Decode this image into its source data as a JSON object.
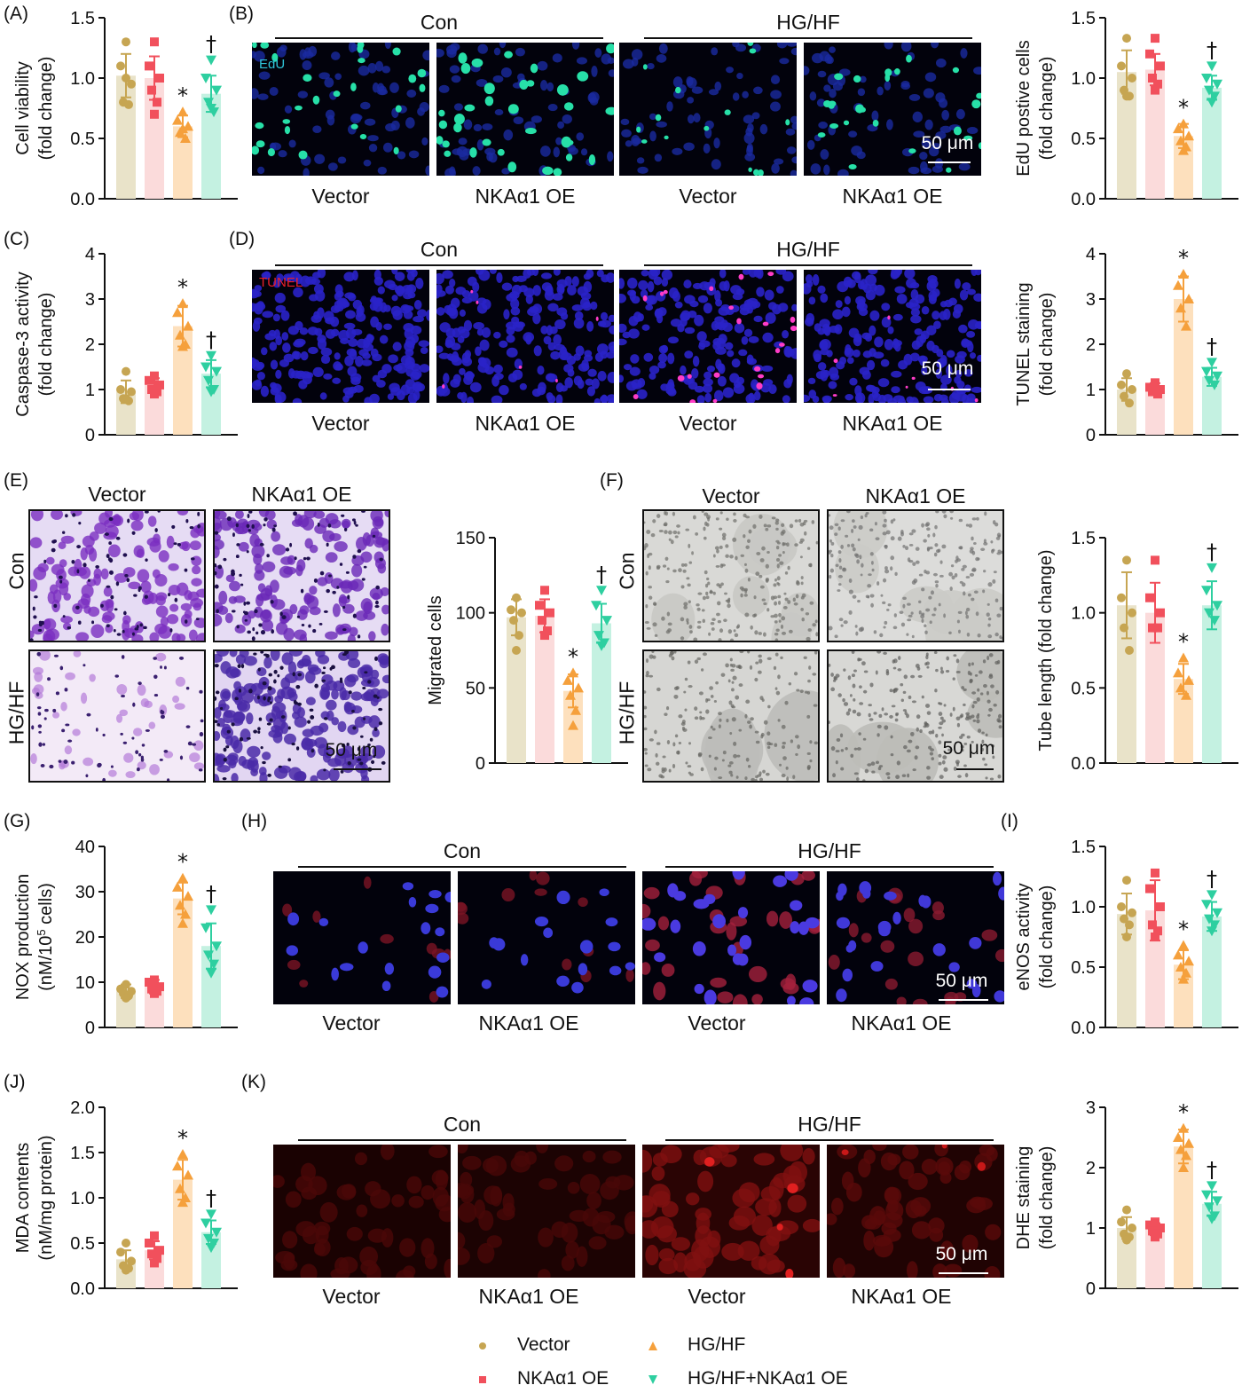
{
  "colors": {
    "vector": "#c6a552",
    "vector_bar": "#e9e3c9",
    "oe": "#f1505c",
    "oe_bar": "#fbdbdb",
    "hg": "#f5a03c",
    "hg_bar": "#fde0bd",
    "hgoe": "#2ecfa0",
    "hgoe_bar": "#c4f1e1"
  },
  "common": {
    "con": "Con",
    "hghf": "HG/HF",
    "vector": "Vector",
    "oe": "NKAα1 OE",
    "scale": "50 μm",
    "edu": "EdU",
    "tunel": "TUNEL"
  },
  "panels": {
    "A": "(A)",
    "B": "(B)",
    "C": "(C)",
    "D": "(D)",
    "E": "(E)",
    "F": "(F)",
    "G": "(G)",
    "H": "(H)",
    "I": "(I)",
    "J": "(J)",
    "K": "(K)"
  },
  "legend": {
    "vector": "Vector",
    "oe": "NKAα1 OE",
    "hg": "HG/HF",
    "hgoe": "HG/HF+NKAα1 OE"
  },
  "chart_data": [
    {
      "id": "A",
      "type": "bar",
      "ylabel": [
        "Cell viability",
        "(fold change)"
      ],
      "ylim": [
        0,
        1.5
      ],
      "ticks": [
        "0.0",
        "0.5",
        "1.0",
        "1.5"
      ],
      "series": [
        {
          "name": "Vector",
          "value": 1.02,
          "sd": 0.18,
          "points": [
            1.3,
            1.1,
            0.95,
            0.8,
            0.78,
            1.0
          ]
        },
        {
          "name": "NKAα1 OE",
          "value": 1.0,
          "sd": 0.18,
          "points": [
            1.3,
            1.1,
            1.0,
            0.9,
            0.8,
            0.7
          ]
        },
        {
          "name": "HG/HF",
          "value": 0.6,
          "sd": 0.09,
          "points": [
            0.72,
            0.65,
            0.6,
            0.55,
            0.5,
            0.58
          ]
        },
        {
          "name": "HG/HF+NKAα1 OE",
          "value": 0.87,
          "sd": 0.15,
          "points": [
            1.15,
            1.0,
            0.9,
            0.8,
            0.72,
            0.75
          ]
        }
      ],
      "marks": [
        "",
        "",
        "*",
        "†"
      ]
    },
    {
      "id": "B",
      "type": "bar",
      "ylabel": [
        "EdU postive cells",
        "(fold change)"
      ],
      "ylim": [
        0,
        1.5
      ],
      "ticks": [
        "0.0",
        "0.5",
        "1.0",
        "1.5"
      ],
      "series": [
        {
          "name": "Vector",
          "value": 1.05,
          "sd": 0.18,
          "points": [
            1.33,
            1.1,
            1.0,
            0.9,
            0.85,
            0.85
          ]
        },
        {
          "name": "NKAα1 OE",
          "value": 1.07,
          "sd": 0.13,
          "points": [
            1.33,
            1.2,
            1.1,
            1.0,
            0.95,
            0.9
          ]
        },
        {
          "name": "HG/HF",
          "value": 0.52,
          "sd": 0.1,
          "points": [
            0.62,
            0.58,
            0.52,
            0.48,
            0.43,
            0.4
          ]
        },
        {
          "name": "HG/HF+NKAα1 OE",
          "value": 0.92,
          "sd": 0.1,
          "points": [
            1.1,
            1.0,
            0.95,
            0.9,
            0.85,
            0.8
          ]
        }
      ],
      "marks": [
        "",
        "",
        "*",
        "†"
      ]
    },
    {
      "id": "C",
      "type": "bar",
      "ylabel": [
        "Caspase-3  activity",
        "(fold change)"
      ],
      "ylim": [
        0,
        4
      ],
      "ticks": [
        "0",
        "1",
        "2",
        "3",
        "4"
      ],
      "series": [
        {
          "name": "Vector",
          "value": 0.95,
          "sd": 0.25,
          "points": [
            1.4,
            1.0,
            0.95,
            0.8,
            0.75,
            0.8
          ]
        },
        {
          "name": "NKAα1 OE",
          "value": 1.1,
          "sd": 0.15,
          "points": [
            1.3,
            1.2,
            1.1,
            1.0,
            0.95,
            0.9
          ]
        },
        {
          "name": "HG/HF",
          "value": 2.4,
          "sd": 0.45,
          "points": [
            2.9,
            2.7,
            2.4,
            2.2,
            2.0,
            1.95
          ]
        },
        {
          "name": "HG/HF+NKAα1 OE",
          "value": 1.35,
          "sd": 0.3,
          "points": [
            1.75,
            1.5,
            1.4,
            1.2,
            1.0,
            0.95
          ]
        }
      ],
      "marks": [
        "",
        "",
        "*",
        "†"
      ]
    },
    {
      "id": "D",
      "type": "bar",
      "ylabel": [
        "TUNEL staining",
        "(fold change)"
      ],
      "ylim": [
        0,
        4
      ],
      "ticks": [
        "0",
        "1",
        "2",
        "3",
        "4"
      ],
      "series": [
        {
          "name": "Vector",
          "value": 1.0,
          "sd": 0.25,
          "points": [
            1.35,
            1.1,
            1.0,
            0.85,
            0.7
          ]
        },
        {
          "name": "NKAα1 OE",
          "value": 1.02,
          "sd": 0.12,
          "points": [
            1.15,
            1.05,
            1.0,
            0.95,
            0.9
          ]
        },
        {
          "name": "HG/HF",
          "value": 3.0,
          "sd": 0.5,
          "points": [
            3.55,
            3.3,
            3.0,
            2.8,
            2.4
          ]
        },
        {
          "name": "HG/HF+NKAα1 OE",
          "value": 1.28,
          "sd": 0.2,
          "points": [
            1.6,
            1.4,
            1.3,
            1.2,
            1.1
          ]
        }
      ],
      "marks": [
        "",
        "",
        "*",
        "†"
      ]
    },
    {
      "id": "E",
      "type": "bar",
      "ylabel": [
        "Migrated cells"
      ],
      "ylim": [
        0,
        150
      ],
      "ticks": [
        "0",
        "50",
        "100",
        "150"
      ],
      "series": [
        {
          "name": "Vector",
          "value": 97,
          "sd": 12,
          "points": [
            110,
            102,
            100,
            95,
            85,
            75
          ]
        },
        {
          "name": "NKAα1 OE",
          "value": 98,
          "sd": 11,
          "points": [
            115,
            105,
            100,
            95,
            88,
            85
          ]
        },
        {
          "name": "HG/HF",
          "value": 48,
          "sd": 11,
          "points": [
            60,
            55,
            50,
            45,
            35,
            25
          ]
        },
        {
          "name": "HG/HF+NKAα1 OE",
          "value": 93,
          "sd": 13,
          "points": [
            115,
            105,
            95,
            85,
            80,
            78
          ]
        }
      ],
      "marks": [
        "",
        "",
        "*",
        "†"
      ]
    },
    {
      "id": "F",
      "type": "bar",
      "ylabel": [
        "Tube length (fold change)"
      ],
      "ylim": [
        0,
        1.5
      ],
      "ticks": [
        "0.0",
        "0.5",
        "1.0",
        "1.5"
      ],
      "series": [
        {
          "name": "Vector",
          "value": 1.05,
          "sd": 0.22,
          "points": [
            1.35,
            1.1,
            1.0,
            0.9,
            0.75
          ]
        },
        {
          "name": "NKAα1 OE",
          "value": 1.0,
          "sd": 0.2,
          "points": [
            1.35,
            1.1,
            1.0,
            0.9,
            0.9
          ]
        },
        {
          "name": "HG/HF",
          "value": 0.56,
          "sd": 0.1,
          "points": [
            0.7,
            0.6,
            0.55,
            0.5,
            0.45
          ]
        },
        {
          "name": "HG/HF+NKAα1 OE",
          "value": 1.05,
          "sd": 0.16,
          "points": [
            1.3,
            1.15,
            1.05,
            1.0,
            0.95
          ]
        }
      ],
      "marks": [
        "",
        "",
        "*",
        "†"
      ]
    },
    {
      "id": "G",
      "type": "bar",
      "ylabel": [
        "NOX production",
        "(nM/10^5 cells)"
      ],
      "ylim": [
        0,
        40
      ],
      "ticks": [
        "0",
        "10",
        "20",
        "30",
        "40"
      ],
      "series": [
        {
          "name": "Vector",
          "value": 8,
          "sd": 1.5,
          "points": [
            9.5,
            8.5,
            8,
            7.5,
            7,
            6.5
          ]
        },
        {
          "name": "NKAα1 OE",
          "value": 9,
          "sd": 1.5,
          "points": [
            10.5,
            10,
            9,
            8.5,
            8,
            7.5
          ]
        },
        {
          "name": "HG/HF",
          "value": 28.5,
          "sd": 3.5,
          "points": [
            33,
            31,
            29,
            27,
            25,
            23
          ]
        },
        {
          "name": "HG/HF+NKAα1 OE",
          "value": 18,
          "sd": 5,
          "points": [
            26,
            22,
            18,
            16,
            14,
            12
          ]
        }
      ],
      "marks": [
        "",
        "",
        "*",
        "†"
      ]
    },
    {
      "id": "I",
      "type": "bar",
      "ylabel": [
        "eNOS  activity",
        "(fold change)"
      ],
      "ylim": [
        0,
        1.5
      ],
      "ticks": [
        "0.0",
        "0.5",
        "1.0",
        "1.5"
      ],
      "series": [
        {
          "name": "Vector",
          "value": 0.94,
          "sd": 0.17,
          "points": [
            1.22,
            1.0,
            0.95,
            0.9,
            0.85,
            0.75
          ]
        },
        {
          "name": "NKAα1 OE",
          "value": 0.97,
          "sd": 0.25,
          "points": [
            1.28,
            1.15,
            1.0,
            0.85,
            0.8,
            0.75
          ]
        },
        {
          "name": "HG/HF",
          "value": 0.52,
          "sd": 0.12,
          "points": [
            0.68,
            0.6,
            0.55,
            0.5,
            0.45,
            0.4
          ]
        },
        {
          "name": "HG/HF+NKAα1 OE",
          "value": 0.92,
          "sd": 0.12,
          "points": [
            1.1,
            1.02,
            0.95,
            0.9,
            0.85,
            0.8
          ]
        }
      ],
      "marks": [
        "",
        "",
        "*",
        "†"
      ]
    },
    {
      "id": "J",
      "type": "bar",
      "ylabel": [
        "MDA contents",
        "(nM/mg protein)"
      ],
      "ylim": [
        0,
        2.0
      ],
      "ticks": [
        "0.0",
        "0.5",
        "1.0",
        "1.5",
        "2.0"
      ],
      "series": [
        {
          "name": "Vector",
          "value": 0.32,
          "sd": 0.1,
          "points": [
            0.5,
            0.4,
            0.3,
            0.25,
            0.22,
            0.2
          ]
        },
        {
          "name": "NKAα1 OE",
          "value": 0.42,
          "sd": 0.1,
          "points": [
            0.58,
            0.5,
            0.42,
            0.38,
            0.33,
            0.28
          ]
        },
        {
          "name": "HG/HF",
          "value": 1.2,
          "sd": 0.22,
          "points": [
            1.48,
            1.35,
            1.25,
            1.1,
            1.0,
            0.95
          ]
        },
        {
          "name": "HG/HF+NKAα1 OE",
          "value": 0.62,
          "sd": 0.13,
          "points": [
            0.82,
            0.72,
            0.62,
            0.55,
            0.5,
            0.45
          ]
        }
      ],
      "marks": [
        "",
        "",
        "*",
        "†"
      ]
    },
    {
      "id": "K",
      "type": "bar",
      "ylabel": [
        "DHE staining",
        "(fold change)"
      ],
      "ylim": [
        0,
        3
      ],
      "ticks": [
        "0",
        "1",
        "2",
        "3"
      ],
      "series": [
        {
          "name": "Vector",
          "value": 1.0,
          "sd": 0.18,
          "points": [
            1.3,
            1.1,
            1.0,
            0.9,
            0.85,
            0.8
          ]
        },
        {
          "name": "NKAα1 OE",
          "value": 0.98,
          "sd": 0.1,
          "points": [
            1.1,
            1.05,
            1.0,
            0.95,
            0.9,
            0.85
          ]
        },
        {
          "name": "HG/HF",
          "value": 2.35,
          "sd": 0.28,
          "points": [
            2.65,
            2.5,
            2.4,
            2.3,
            2.2,
            2.0
          ]
        },
        {
          "name": "HG/HF+NKAα1 OE",
          "value": 1.4,
          "sd": 0.2,
          "points": [
            1.7,
            1.55,
            1.45,
            1.35,
            1.2,
            1.15
          ]
        }
      ],
      "marks": [
        "",
        "",
        "*",
        "†"
      ]
    }
  ]
}
